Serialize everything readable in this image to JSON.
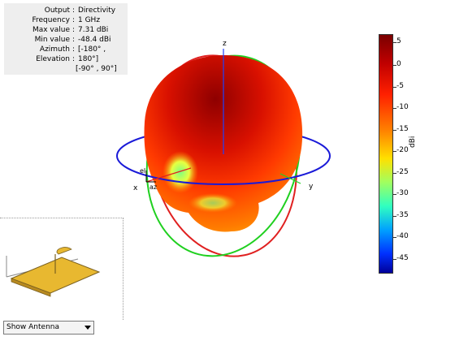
{
  "info": {
    "rows": [
      {
        "label": "Output",
        "value": "Directivity"
      },
      {
        "label": "Frequency",
        "value": "1 GHz"
      },
      {
        "label": "Max value",
        "value": "7.31 dBi"
      },
      {
        "label": "Min value",
        "value": "-48.4 dBi"
      },
      {
        "label": "Azimuth",
        "value": "[-180° ,"
      },
      {
        "label": "Elevation",
        "value": "180°]"
      }
    ],
    "extra": "[-90° , 90°]"
  },
  "axes": {
    "z": "z",
    "x": "x",
    "y": "y",
    "el": "el",
    "az": "az"
  },
  "colorbar": {
    "unit": "dBi",
    "ticks": [
      "5",
      "0",
      "-5",
      "-10",
      "-15",
      "-20",
      "-25",
      "-30",
      "-35",
      "-40",
      "-45"
    ],
    "colors": [
      "#7a0000",
      "#c00000",
      "#ff2000",
      "#ff8000",
      "#ffe000",
      "#a0ff60",
      "#30ffc0",
      "#00a0ff",
      "#0030ff",
      "#00009a"
    ]
  },
  "dropdown": {
    "selected": "Show Antenna"
  }
}
